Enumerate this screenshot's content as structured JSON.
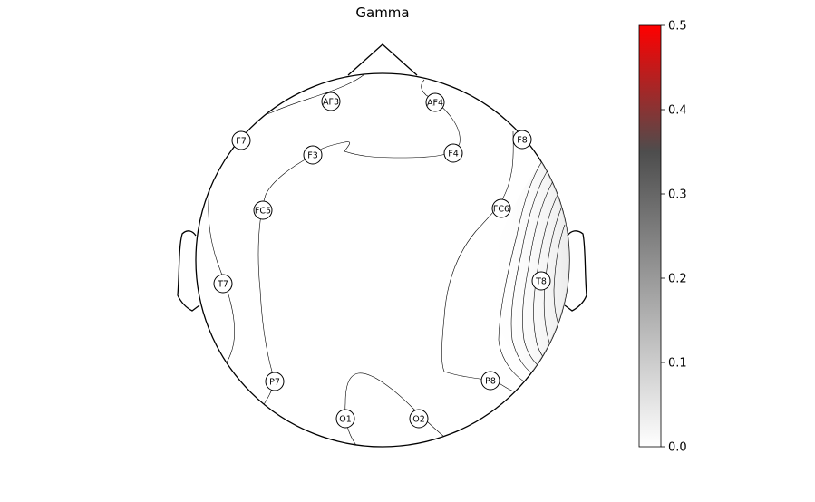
{
  "chart_data": {
    "type": "topomap",
    "title": "Gamma",
    "electrodes": [
      {
        "name": "AF3",
        "value": 0.0
      },
      {
        "name": "AF4",
        "value": 0.0
      },
      {
        "name": "F7",
        "value": 0.0
      },
      {
        "name": "F3",
        "value": 0.0
      },
      {
        "name": "F4",
        "value": 0.0
      },
      {
        "name": "F8",
        "value": 0.01
      },
      {
        "name": "FC5",
        "value": 0.0
      },
      {
        "name": "FC6",
        "value": 0.02
      },
      {
        "name": "T7",
        "value": 0.0
      },
      {
        "name": "T8",
        "value": 0.1
      },
      {
        "name": "P7",
        "value": 0.0
      },
      {
        "name": "P8",
        "value": 0.02
      },
      {
        "name": "O1",
        "value": 0.0
      },
      {
        "name": "O2",
        "value": 0.0
      }
    ],
    "colorbar": {
      "vmin": 0.0,
      "vmax": 0.5,
      "ticks": [
        "0.0",
        "0.1",
        "0.2",
        "0.3",
        "0.4",
        "0.5"
      ],
      "colors": [
        "#ffffff",
        "#4d4d4d",
        "#ff0000"
      ]
    }
  }
}
